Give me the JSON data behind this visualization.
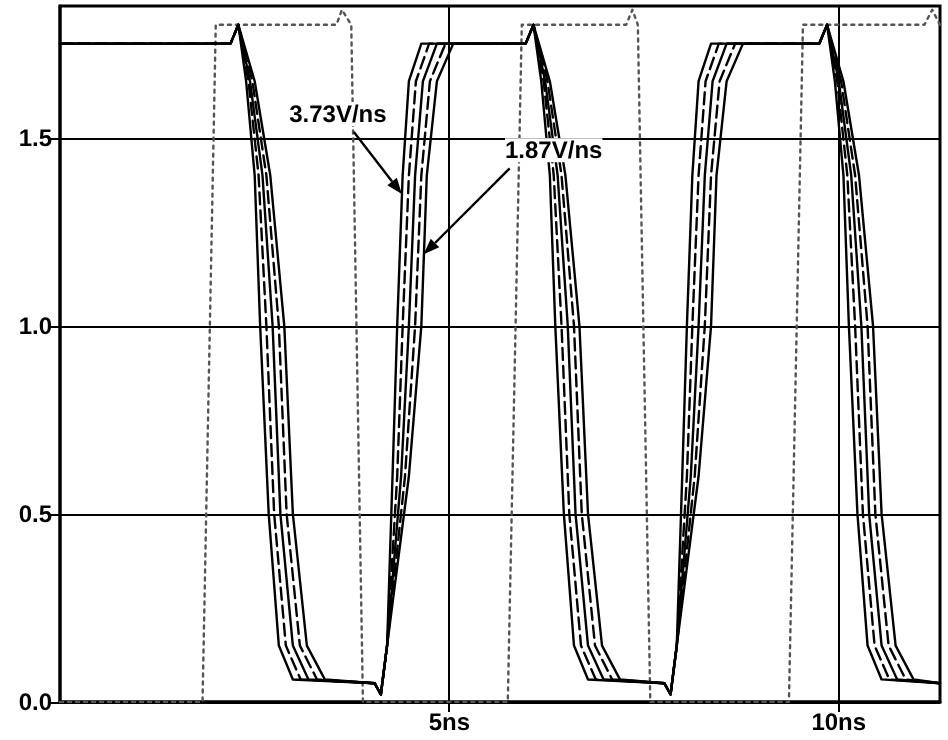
{
  "chart_data": {
    "type": "line",
    "xlim": [
      0,
      11.3
    ],
    "ylim": [
      0,
      1.85
    ],
    "xticks": [
      {
        "value": 5,
        "label": "5ns"
      },
      {
        "value": 10,
        "label": "10ns"
      }
    ],
    "yticks": [
      {
        "value": 0,
        "label": "0.0"
      },
      {
        "value": 0.5,
        "label": "0.5"
      },
      {
        "value": 1,
        "label": "1.0"
      },
      {
        "value": 1.5,
        "label": "1.5"
      }
    ],
    "grid": true,
    "marker": "none",
    "annotations": [
      {
        "text": "3.73V/ns",
        "x": 4.39,
        "y": 1.35
      },
      {
        "text": "1.87V/ns",
        "x": 4.67,
        "y": 1.19
      }
    ],
    "series": [
      {
        "color": "#555555",
        "line_style": "dotted",
        "x": [
          0,
          1.83,
          2.0,
          3.55,
          3.62,
          3.74,
          3.89,
          5.75,
          5.93,
          7.27,
          7.35,
          7.42,
          7.58,
          9.36,
          9.54,
          11.1,
          11.2,
          11.3
        ],
        "values": [
          0,
          0,
          1.8,
          1.8,
          1.84,
          1.8,
          0,
          0,
          1.8,
          1.8,
          1.84,
          1.8,
          0,
          0,
          1.8,
          1.8,
          1.84,
          1.8
        ]
      },
      {
        "color": "#000000",
        "line_style": "solid",
        "x": [
          0,
          2.19,
          2.29,
          2.39,
          2.5,
          2.57,
          2.68,
          2.81,
          2.99,
          4.04,
          4.12,
          4.2,
          4.27,
          4.33,
          4.4,
          4.48,
          4.64,
          5.98,
          6.08,
          6.18,
          6.29,
          6.36,
          6.47,
          6.6,
          6.78,
          7.76,
          7.84,
          7.92,
          7.99,
          8.05,
          8.12,
          8.2,
          8.36,
          9.75,
          9.85,
          9.95,
          10.06,
          10.13,
          10.24,
          10.37,
          10.55,
          11.3
        ],
        "values": [
          1.75,
          1.75,
          1.8,
          1.65,
          1.4,
          1.0,
          0.5,
          0.15,
          0.06,
          0.05,
          0.02,
          0.15,
          0.6,
          1.0,
          1.4,
          1.65,
          1.75,
          1.75,
          1.8,
          1.65,
          1.4,
          1.0,
          0.5,
          0.15,
          0.06,
          0.05,
          0.02,
          0.15,
          0.6,
          1.0,
          1.4,
          1.65,
          1.75,
          1.75,
          1.8,
          1.65,
          1.4,
          1.0,
          0.5,
          0.15,
          0.06,
          0.05
        ]
      },
      {
        "color": "#000000",
        "line_style": "dashed",
        "x": [
          0,
          2.19,
          2.29,
          2.42,
          2.55,
          2.65,
          2.75,
          2.9,
          3.09,
          4.04,
          4.12,
          4.2,
          4.33,
          4.4,
          4.48,
          4.57,
          4.74,
          5.98,
          6.08,
          6.21,
          6.34,
          6.44,
          6.54,
          6.69,
          6.88,
          7.76,
          7.84,
          7.92,
          8.05,
          8.12,
          8.2,
          8.29,
          8.46,
          9.75,
          9.85,
          9.98,
          10.11,
          10.21,
          10.31,
          10.46,
          10.65,
          11.3
        ],
        "values": [
          1.75,
          1.75,
          1.8,
          1.65,
          1.4,
          1.0,
          0.5,
          0.15,
          0.06,
          0.05,
          0.02,
          0.15,
          0.6,
          1.0,
          1.4,
          1.65,
          1.75,
          1.75,
          1.8,
          1.65,
          1.4,
          1.0,
          0.5,
          0.15,
          0.06,
          0.05,
          0.02,
          0.15,
          0.6,
          1.0,
          1.4,
          1.65,
          1.75,
          1.75,
          1.8,
          1.65,
          1.4,
          1.0,
          0.5,
          0.15,
          0.06,
          0.05
        ]
      },
      {
        "color": "#000000",
        "line_style": "solid",
        "x": [
          0,
          2.19,
          2.29,
          2.44,
          2.6,
          2.73,
          2.83,
          2.99,
          3.19,
          4.04,
          4.12,
          4.2,
          4.38,
          4.48,
          4.56,
          4.66,
          4.84,
          5.98,
          6.08,
          6.23,
          6.39,
          6.52,
          6.62,
          6.78,
          6.98,
          7.76,
          7.84,
          7.92,
          8.1,
          8.2,
          8.28,
          8.38,
          8.56,
          9.75,
          9.85,
          10.0,
          10.16,
          10.29,
          10.39,
          10.55,
          10.75,
          11.3
        ],
        "values": [
          1.75,
          1.75,
          1.8,
          1.65,
          1.4,
          1.0,
          0.5,
          0.15,
          0.06,
          0.05,
          0.02,
          0.15,
          0.6,
          1.0,
          1.4,
          1.65,
          1.75,
          1.75,
          1.8,
          1.65,
          1.4,
          1.0,
          0.5,
          0.15,
          0.06,
          0.05,
          0.02,
          0.15,
          0.6,
          1.0,
          1.4,
          1.65,
          1.75,
          1.75,
          1.8,
          1.65,
          1.4,
          1.0,
          0.5,
          0.15,
          0.06,
          0.05
        ]
      },
      {
        "color": "#000000",
        "line_style": "dashed",
        "x": [
          0,
          2.19,
          2.29,
          2.47,
          2.65,
          2.81,
          2.91,
          3.08,
          3.3,
          4.04,
          4.12,
          4.2,
          4.43,
          4.56,
          4.64,
          4.75,
          4.95,
          5.98,
          6.08,
          6.26,
          6.44,
          6.6,
          6.7,
          6.87,
          7.09,
          7.76,
          7.84,
          7.92,
          8.15,
          8.28,
          8.36,
          8.47,
          8.67,
          9.75,
          9.85,
          10.03,
          10.21,
          10.37,
          10.47,
          10.64,
          10.86,
          11.3
        ],
        "values": [
          1.75,
          1.75,
          1.8,
          1.65,
          1.4,
          1.0,
          0.5,
          0.15,
          0.06,
          0.05,
          0.02,
          0.15,
          0.6,
          1.0,
          1.4,
          1.65,
          1.75,
          1.75,
          1.8,
          1.65,
          1.4,
          1.0,
          0.5,
          0.15,
          0.06,
          0.05,
          0.02,
          0.15,
          0.6,
          1.0,
          1.4,
          1.65,
          1.75,
          1.75,
          1.8,
          1.65,
          1.4,
          1.0,
          0.5,
          0.15,
          0.06,
          0.05
        ]
      },
      {
        "color": "#000000",
        "line_style": "solid",
        "x": [
          0,
          2.19,
          2.29,
          2.5,
          2.7,
          2.88,
          2.99,
          3.17,
          3.4,
          4.04,
          4.12,
          4.2,
          4.48,
          4.64,
          4.71,
          4.84,
          5.05,
          5.98,
          6.08,
          6.29,
          6.49,
          6.67,
          6.78,
          6.96,
          7.19,
          7.76,
          7.84,
          7.92,
          8.2,
          8.36,
          8.43,
          8.56,
          8.77,
          9.75,
          9.85,
          10.06,
          10.26,
          10.44,
          10.55,
          10.73,
          10.96,
          11.3
        ],
        "values": [
          1.75,
          1.75,
          1.8,
          1.65,
          1.4,
          1.0,
          0.5,
          0.15,
          0.06,
          0.05,
          0.02,
          0.15,
          0.6,
          1.0,
          1.4,
          1.65,
          1.75,
          1.75,
          1.8,
          1.65,
          1.4,
          1.0,
          0.5,
          0.15,
          0.06,
          0.05,
          0.02,
          0.15,
          0.6,
          1.0,
          1.4,
          1.65,
          1.75,
          1.75,
          1.8,
          1.65,
          1.4,
          1.0,
          0.5,
          0.15,
          0.06,
          0.05
        ]
      }
    ]
  }
}
